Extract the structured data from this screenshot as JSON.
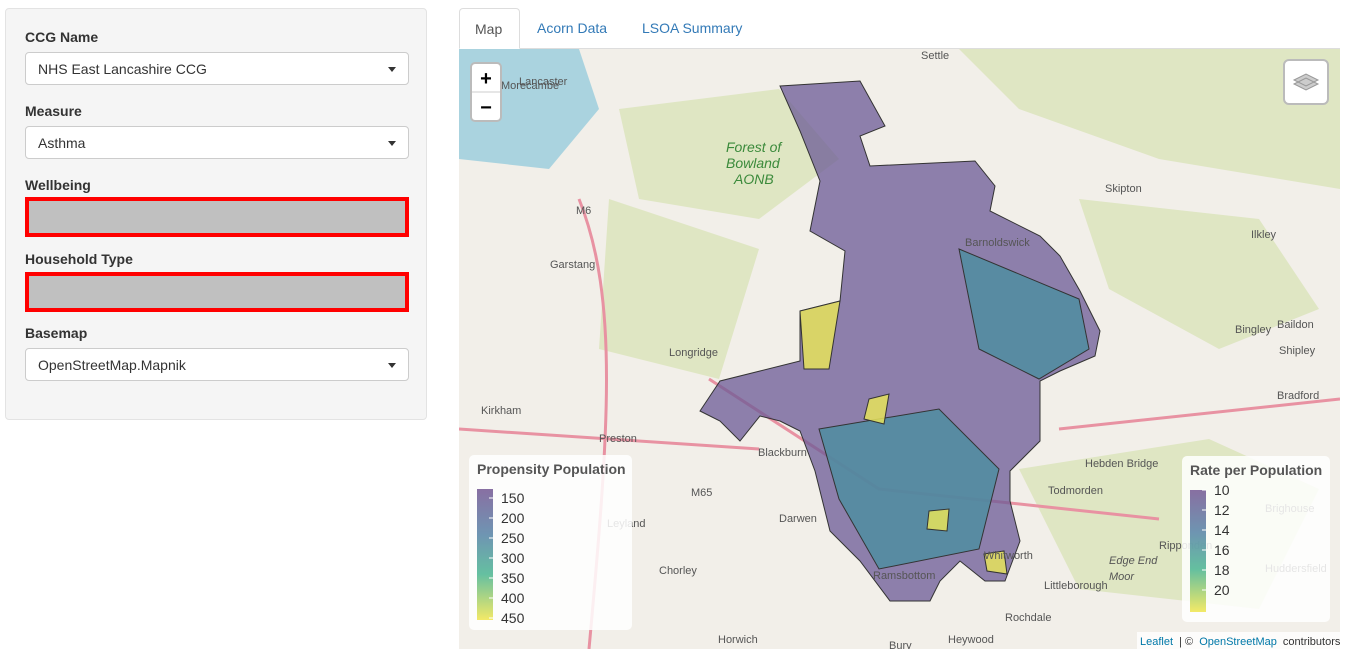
{
  "sidebar": {
    "fields": [
      {
        "label": "CCG Name",
        "value": "NHS East Lancashire CCG"
      },
      {
        "label": "Measure",
        "value": "Asthma"
      },
      {
        "label": "Wellbeing"
      },
      {
        "label": "Household Type"
      },
      {
        "label": "Basemap",
        "value": "OpenStreetMap.Mapnik"
      }
    ]
  },
  "tabs": [
    "Map",
    "Acorn Data",
    "LSOA Summary"
  ],
  "map": {
    "zoom_in": "+",
    "zoom_out": "−",
    "place_labels": [
      "Morecambe",
      "Lancaster",
      "Settle",
      "Forest of",
      "Bowland",
      "AONB",
      "Skipton",
      "Ilkley",
      "Garstang",
      "M6",
      "Barnoldswick",
      "Longridge",
      "Bingley",
      "Baildon",
      "Shipley",
      "Kirkham",
      "Preston",
      "Blackburn",
      "Bradford",
      "Hebden Bridge",
      "Todmorden",
      "M65",
      "Darwen",
      "Leyland",
      "Chorley",
      "Ramsbottom",
      "Whitworth",
      "Littleborough",
      "Rochdale",
      "Heywood",
      "Horwich",
      "Bury",
      "Brighouse",
      "Huddersfield",
      "Ripponden",
      "Edge End",
      "Moor"
    ],
    "legends": [
      {
        "title": "Propensity Population",
        "ticks": [
          150,
          200,
          250,
          300,
          350,
          400,
          450
        ]
      },
      {
        "title": "Rate per Population",
        "ticks": [
          10,
          12,
          14,
          16,
          18,
          20
        ]
      }
    ],
    "attribution": {
      "leaflet": "Leaflet",
      "sep": "| ©",
      "osm": "OpenStreetMap",
      "rest": "contributors"
    }
  }
}
